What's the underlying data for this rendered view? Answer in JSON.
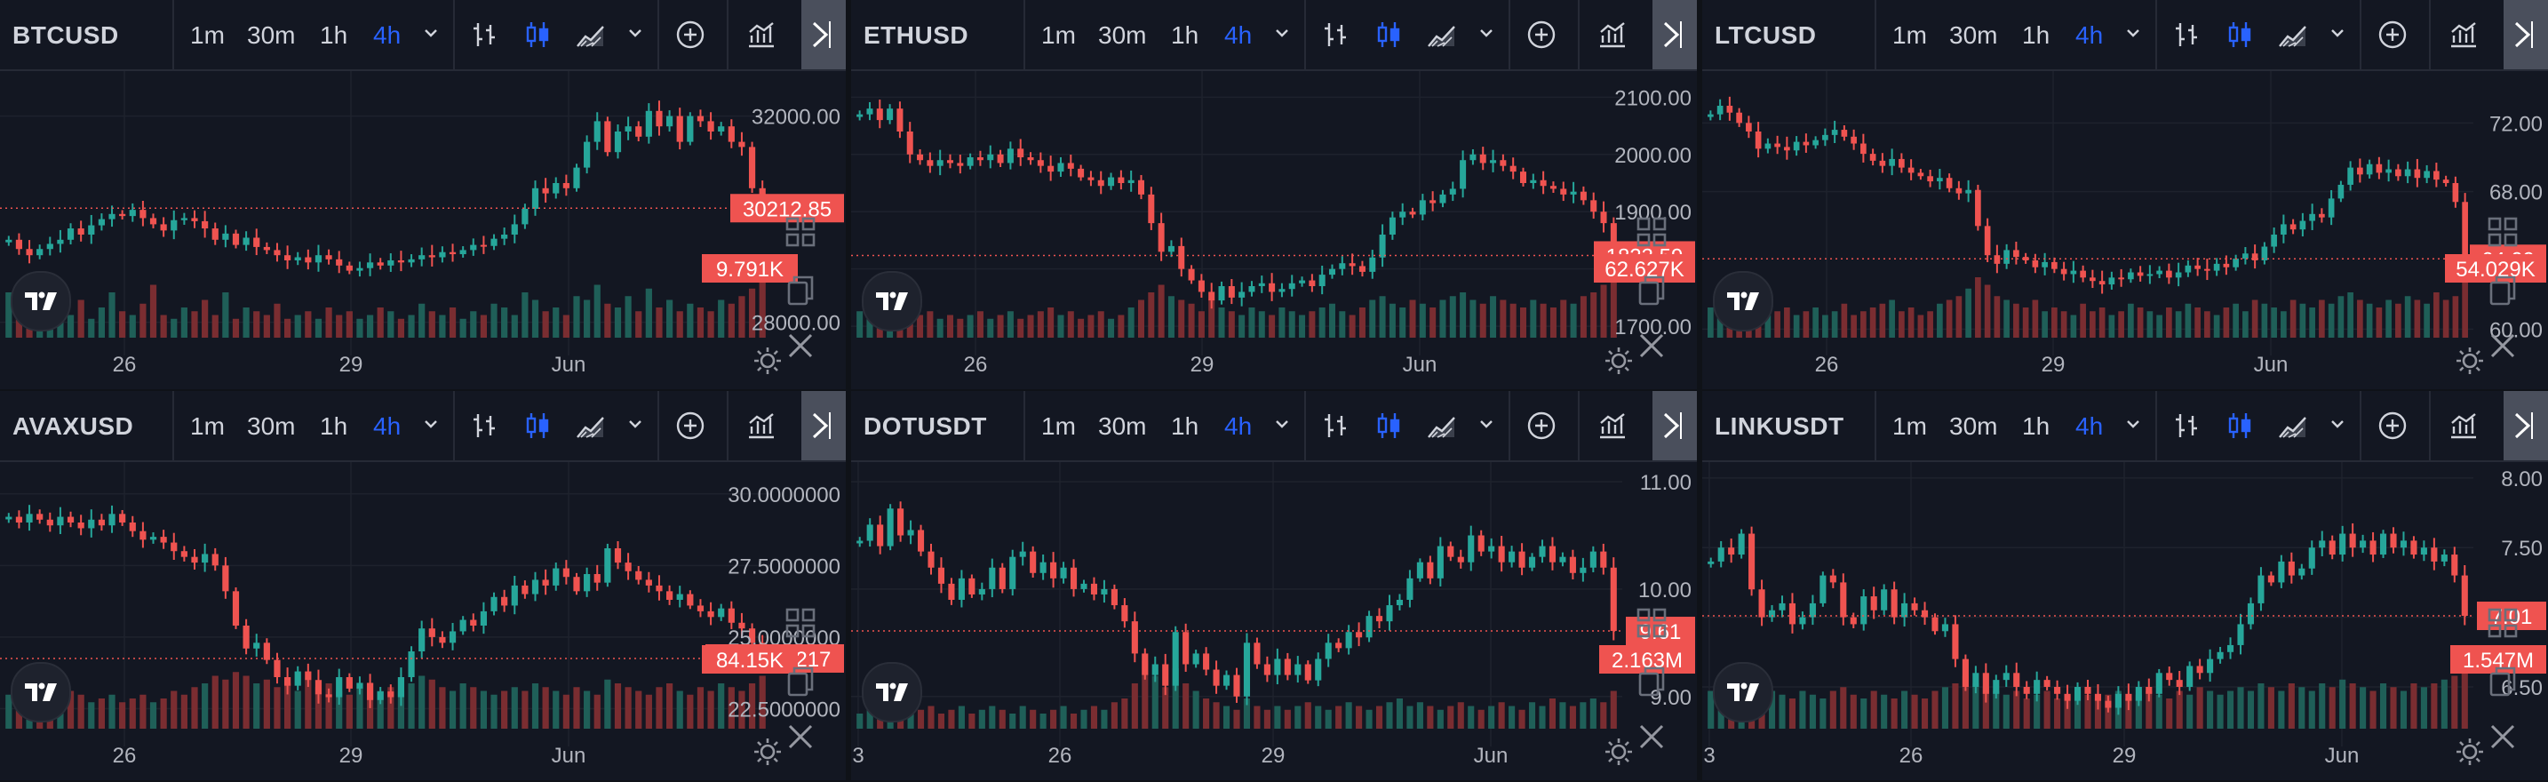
{
  "colors": {
    "background": "#131722",
    "up": "#26a69a",
    "down": "#ef5350",
    "up_volume": "#1f5f58",
    "down_volume": "#7a2d31",
    "label_bg": "#ef5350",
    "active_timeframe": "#2962ff",
    "text": "#d1d4dc",
    "axis_text": "#b2b5be"
  },
  "toolbar": {
    "timeframes": [
      "1m",
      "30m",
      "1h",
      "4h"
    ],
    "active_timeframe": "4h",
    "icons": [
      "bar-style-icon",
      "candle-style-icon",
      "area-style-icon",
      "chevron-down-icon",
      "add-indicator-icon",
      "indicators-icon",
      "fullscreen-icon"
    ]
  },
  "panels": [
    {
      "symbol": "BTCUSD",
      "price_label": "30212.85",
      "volume_label": "9.791K",
      "x_ticks": [
        "26",
        "29",
        "Jun"
      ],
      "chart_data": {
        "type": "candlestick",
        "y_ticks": [
          "32000.00",
          "28000.00"
        ],
        "y_tick_values": [
          32000,
          28000
        ],
        "ylim": [
          27700,
          32700
        ],
        "last_price": 30212.85,
        "closes": [
          29600,
          29420,
          29300,
          29420,
          29520,
          29600,
          29820,
          29700,
          29880,
          30000,
          30100,
          30060,
          30180,
          30020,
          29900,
          29780,
          29980,
          30020,
          29960,
          29820,
          29600,
          29720,
          29500,
          29640,
          29460,
          29400,
          29300,
          29200,
          29260,
          29160,
          29300,
          29220,
          29100,
          29000,
          29050,
          29160,
          29100,
          29200,
          29160,
          29220,
          29300,
          29260,
          29360,
          29320,
          29400,
          29500,
          29480,
          29620,
          29700,
          29900,
          30200,
          30600,
          30500,
          30700,
          30600,
          31000,
          31500,
          31900,
          31300,
          31700,
          31800,
          31600,
          32100,
          31800,
          32000,
          31500,
          32000,
          31900,
          31700,
          31800,
          31500,
          31400,
          30600,
          30200
        ],
        "volumes": [
          0.6,
          0.35,
          0.25,
          0.3,
          0.45,
          0.35,
          0.3,
          0.5,
          0.25,
          0.4,
          0.6,
          0.35,
          0.3,
          0.45,
          0.7,
          0.3,
          0.25,
          0.4,
          0.35,
          0.5,
          0.3,
          0.6,
          0.25,
          0.4,
          0.35,
          0.3,
          0.45,
          0.25,
          0.3,
          0.35,
          0.25,
          0.4,
          0.3,
          0.35,
          0.25,
          0.3,
          0.4,
          0.35,
          0.25,
          0.3,
          0.45,
          0.35,
          0.3,
          0.4,
          0.25,
          0.35,
          0.3,
          0.45,
          0.4,
          0.3,
          0.6,
          0.5,
          0.35,
          0.4,
          0.3,
          0.55,
          0.5,
          0.7,
          0.45,
          0.4,
          0.55,
          0.35,
          0.65,
          0.4,
          0.5,
          0.35,
          0.45,
          0.4,
          0.35,
          0.5,
          0.45,
          0.55,
          0.65,
          1.0
        ]
      }
    },
    {
      "symbol": "ETHUSD",
      "price_label": "1823.59",
      "volume_label": "62.627K",
      "x_ticks": [
        "26",
        "29",
        "Jun"
      ],
      "chart_data": {
        "type": "candlestick",
        "y_ticks": [
          "2100.00",
          "2000.00",
          "1900.00",
          "1800.00",
          "1700.00"
        ],
        "y_tick_values": [
          2100,
          2000,
          1900,
          1800,
          1700
        ],
        "ylim": [
          1680,
          2130
        ],
        "last_price": 1823.59,
        "closes": [
          2070,
          2080,
          2060,
          2080,
          2040,
          2000,
          1990,
          1980,
          1990,
          1985,
          1980,
          1995,
          1990,
          2000,
          1985,
          2010,
          1995,
          1990,
          1980,
          1970,
          1985,
          1975,
          1960,
          1955,
          1945,
          1960,
          1950,
          1955,
          1930,
          1880,
          1830,
          1840,
          1800,
          1780,
          1760,
          1745,
          1770,
          1750,
          1760,
          1770,
          1775,
          1760,
          1765,
          1775,
          1780,
          1770,
          1790,
          1800,
          1810,
          1805,
          1795,
          1820,
          1860,
          1890,
          1900,
          1895,
          1920,
          1915,
          1930,
          1940,
          1990,
          2000,
          1985,
          1990,
          1980,
          1970,
          1950,
          1955,
          1945,
          1940,
          1930,
          1935,
          1920,
          1900,
          1880,
          1823.59
        ],
        "volumes": [
          0.35,
          0.3,
          0.25,
          0.3,
          0.35,
          0.25,
          0.3,
          0.35,
          0.25,
          0.3,
          0.25,
          0.3,
          0.35,
          0.25,
          0.3,
          0.35,
          0.25,
          0.3,
          0.35,
          0.4,
          0.3,
          0.35,
          0.25,
          0.3,
          0.35,
          0.25,
          0.3,
          0.4,
          0.5,
          0.6,
          0.7,
          0.55,
          0.5,
          0.45,
          0.35,
          0.5,
          0.4,
          0.35,
          0.3,
          0.4,
          0.35,
          0.3,
          0.4,
          0.35,
          0.3,
          0.35,
          0.4,
          0.45,
          0.35,
          0.3,
          0.4,
          0.5,
          0.55,
          0.45,
          0.4,
          0.5,
          0.45,
          0.4,
          0.5,
          0.55,
          0.6,
          0.5,
          0.45,
          0.55,
          0.5,
          0.45,
          0.4,
          0.5,
          0.45,
          0.4,
          0.5,
          0.45,
          0.55,
          0.6,
          0.7,
          1.0
        ]
      }
    },
    {
      "symbol": "LTCUSD",
      "price_label": "64.09",
      "volume_label": "54.029K",
      "x_ticks": [
        "26",
        "29",
        "Jun"
      ],
      "chart_data": {
        "type": "candlestick",
        "y_ticks": [
          "72.00",
          "68.00",
          "60.00"
        ],
        "y_tick_values": [
          72,
          68,
          60
        ],
        "ylim": [
          59.5,
          74.5
        ],
        "last_price": 64.09,
        "closes": [
          72.5,
          73,
          72.6,
          72,
          71.5,
          70.5,
          70.8,
          70.6,
          70.4,
          70.9,
          70.7,
          71.0,
          71.3,
          71.6,
          71.2,
          70.8,
          70.2,
          69.8,
          69.5,
          69.9,
          69.4,
          69.1,
          68.9,
          68.6,
          68.8,
          68.2,
          67.9,
          68.1,
          66.0,
          64.3,
          63.8,
          64.6,
          64.2,
          64.0,
          63.6,
          63.9,
          63.5,
          63.2,
          63.4,
          63.0,
          62.8,
          62.6,
          63.0,
          62.9,
          63.3,
          63.1,
          63.2,
          63.4,
          63.0,
          63.3,
          63.7,
          63.5,
          63.4,
          63.8,
          63.6,
          64.1,
          64.4,
          64.0,
          64.8,
          65.5,
          66.1,
          65.8,
          66.3,
          66.7,
          66.5,
          67.6,
          68.4,
          69.4,
          69.0,
          69.6,
          69.1,
          69.3,
          68.9,
          69.3,
          68.8,
          69.2,
          68.7,
          68.5,
          67.4,
          64.09
        ],
        "volumes": [
          0.4,
          0.35,
          0.5,
          0.4,
          0.35,
          0.45,
          0.3,
          0.35,
          0.4,
          0.3,
          0.35,
          0.4,
          0.3,
          0.35,
          0.45,
          0.3,
          0.35,
          0.4,
          0.45,
          0.5,
          0.35,
          0.4,
          0.3,
          0.35,
          0.45,
          0.5,
          0.55,
          0.65,
          0.8,
          0.7,
          0.55,
          0.5,
          0.45,
          0.4,
          0.5,
          0.35,
          0.4,
          0.35,
          0.3,
          0.45,
          0.35,
          0.4,
          0.3,
          0.35,
          0.45,
          0.4,
          0.35,
          0.3,
          0.4,
          0.35,
          0.45,
          0.4,
          0.35,
          0.3,
          0.4,
          0.45,
          0.35,
          0.5,
          0.45,
          0.4,
          0.35,
          0.5,
          0.45,
          0.4,
          0.5,
          0.45,
          0.55,
          0.6,
          0.5,
          0.45,
          0.4,
          0.5,
          0.45,
          0.55,
          0.5,
          0.45,
          0.6,
          0.5,
          0.55,
          0.8
        ]
      }
    },
    {
      "symbol": "AVAXUSD",
      "price_label": "24.2526217",
      "volume_label": "84.15K",
      "x_ticks": [
        "26",
        "29",
        "Jun"
      ],
      "chart_data": {
        "type": "candlestick",
        "y_ticks": [
          "30.0000000",
          "27.5000000",
          "25.0000000",
          "22.5000000"
        ],
        "y_tick_values": [
          30,
          27.5,
          25,
          22.5
        ],
        "ylim": [
          21.8,
          30.8
        ],
        "last_price": 24.2526217,
        "closes": [
          29.2,
          29.0,
          29.3,
          29.1,
          28.9,
          29.2,
          29.0,
          28.8,
          29.1,
          28.9,
          29.3,
          29.0,
          28.7,
          28.4,
          28.5,
          28.3,
          28.0,
          27.8,
          27.6,
          27.9,
          27.5,
          26.6,
          25.4,
          24.6,
          24.8,
          24.2,
          23.6,
          23.3,
          23.8,
          23.5,
          23.0,
          22.9,
          23.6,
          23.2,
          23.4,
          22.8,
          23.1,
          22.9,
          23.6,
          24.5,
          25.3,
          25.0,
          24.8,
          25.2,
          25.6,
          25.4,
          25.9,
          26.4,
          26.1,
          26.8,
          26.5,
          27.0,
          26.8,
          27.4,
          27.1,
          26.6,
          27.2,
          26.9,
          28.1,
          27.6,
          27.3,
          27.0,
          26.8,
          26.6,
          26.3,
          26.5,
          26.1,
          25.9,
          25.7,
          26.0,
          25.5,
          25.3,
          24.8,
          24.25
        ],
        "volumes": [
          0.45,
          0.5,
          0.4,
          0.35,
          0.45,
          0.4,
          0.5,
          0.45,
          0.35,
          0.4,
          0.45,
          0.35,
          0.4,
          0.45,
          0.35,
          0.4,
          0.5,
          0.45,
          0.55,
          0.6,
          0.7,
          0.65,
          0.75,
          0.7,
          0.6,
          0.65,
          0.55,
          0.6,
          0.5,
          0.65,
          0.55,
          0.6,
          0.5,
          0.45,
          0.55,
          0.6,
          0.5,
          0.55,
          0.5,
          0.6,
          0.7,
          0.65,
          0.55,
          0.5,
          0.6,
          0.55,
          0.5,
          0.45,
          0.5,
          0.55,
          0.5,
          0.6,
          0.55,
          0.5,
          0.45,
          0.55,
          0.5,
          0.45,
          0.65,
          0.6,
          0.55,
          0.5,
          0.45,
          0.55,
          0.6,
          0.5,
          0.45,
          0.55,
          0.5,
          0.6,
          0.55,
          0.5,
          0.6,
          0.7
        ]
      }
    },
    {
      "symbol": "DOTUSDT",
      "price_label": "9.61",
      "volume_label": "2.163M",
      "x_ticks": [
        "3",
        "26",
        "29",
        "Jun"
      ],
      "chart_data": {
        "type": "candlestick",
        "y_ticks": [
          "11.00",
          "10.00",
          "9.00"
        ],
        "y_tick_values": [
          11,
          10,
          9
        ],
        "ylim": [
          8.7,
          11.1
        ],
        "last_price": 9.61,
        "closes": [
          10.45,
          10.6,
          10.4,
          10.75,
          10.5,
          10.55,
          10.35,
          10.2,
          10.05,
          9.9,
          10.1,
          9.95,
          10.0,
          10.2,
          10.0,
          10.3,
          10.35,
          10.15,
          10.25,
          10.1,
          10.2,
          10.0,
          10.05,
          9.95,
          10.0,
          9.85,
          9.7,
          9.4,
          9.2,
          9.3,
          9.1,
          9.6,
          9.3,
          9.4,
          9.25,
          9.1,
          9.2,
          9.0,
          9.5,
          9.3,
          9.2,
          9.35,
          9.2,
          9.3,
          9.15,
          9.35,
          9.5,
          9.45,
          9.6,
          9.55,
          9.75,
          9.7,
          9.85,
          9.9,
          10.1,
          10.25,
          10.1,
          10.4,
          10.3,
          10.25,
          10.5,
          10.35,
          10.4,
          10.25,
          10.35,
          10.2,
          10.3,
          10.4,
          10.25,
          10.3,
          10.15,
          10.2,
          10.35,
          10.2,
          9.61
        ],
        "volumes": [
          0.2,
          0.25,
          0.2,
          0.3,
          0.25,
          0.2,
          0.25,
          0.3,
          0.2,
          0.25,
          0.3,
          0.2,
          0.25,
          0.3,
          0.25,
          0.2,
          0.3,
          0.25,
          0.2,
          0.25,
          0.3,
          0.2,
          0.25,
          0.3,
          0.25,
          0.35,
          0.4,
          0.6,
          0.9,
          0.7,
          0.55,
          0.8,
          0.6,
          0.5,
          0.4,
          0.35,
          0.3,
          0.25,
          0.4,
          0.3,
          0.25,
          0.3,
          0.25,
          0.3,
          0.35,
          0.3,
          0.25,
          0.3,
          0.35,
          0.3,
          0.25,
          0.3,
          0.35,
          0.4,
          0.3,
          0.35,
          0.3,
          0.25,
          0.3,
          0.35,
          0.3,
          0.25,
          0.3,
          0.35,
          0.3,
          0.25,
          0.35,
          0.3,
          0.4,
          0.35,
          0.3,
          0.35,
          0.4,
          0.35,
          0.5
        ]
      }
    },
    {
      "symbol": "LINKUSDT",
      "price_label": "7.01",
      "volume_label": "1.547M",
      "x_ticks": [
        "3",
        "26",
        "29",
        "Jun"
      ],
      "chart_data": {
        "type": "candlestick",
        "y_ticks": [
          "8.00",
          "7.50",
          "7.00",
          "6.50"
        ],
        "y_tick_values": [
          8,
          7.5,
          7,
          6.5
        ],
        "ylim": [
          6.2,
          8.05
        ],
        "last_price": 7.01,
        "closes": [
          7.4,
          7.5,
          7.45,
          7.6,
          7.2,
          7.0,
          7.05,
          7.1,
          6.95,
          7.0,
          7.1,
          7.3,
          7.25,
          7.0,
          6.95,
          7.15,
          7.05,
          7.2,
          7.0,
          7.1,
          7.05,
          7.0,
          6.9,
          6.95,
          6.7,
          6.5,
          6.6,
          6.45,
          6.55,
          6.6,
          6.5,
          6.45,
          6.55,
          6.5,
          6.45,
          6.4,
          6.5,
          6.45,
          6.4,
          6.35,
          6.45,
          6.4,
          6.5,
          6.45,
          6.6,
          6.55,
          6.5,
          6.65,
          6.6,
          6.7,
          6.75,
          6.8,
          6.95,
          7.1,
          7.3,
          7.25,
          7.4,
          7.3,
          7.35,
          7.5,
          7.55,
          7.45,
          7.6,
          7.5,
          7.55,
          7.45,
          7.6,
          7.5,
          7.55,
          7.45,
          7.5,
          7.4,
          7.45,
          7.3,
          7.01
        ],
        "volumes": [
          0.5,
          0.45,
          0.4,
          0.5,
          0.45,
          0.55,
          0.5,
          0.45,
          0.4,
          0.5,
          0.45,
          0.4,
          0.5,
          0.55,
          0.45,
          0.4,
          0.5,
          0.45,
          0.4,
          0.5,
          0.45,
          0.4,
          0.5,
          0.55,
          0.6,
          0.7,
          0.6,
          0.55,
          0.5,
          0.45,
          0.5,
          0.4,
          0.45,
          0.5,
          0.4,
          0.45,
          0.5,
          0.45,
          0.4,
          0.45,
          0.5,
          0.4,
          0.45,
          0.5,
          0.45,
          0.4,
          0.5,
          0.45,
          0.55,
          0.5,
          0.45,
          0.5,
          0.55,
          0.5,
          0.6,
          0.55,
          0.5,
          0.6,
          0.55,
          0.5,
          0.6,
          0.55,
          0.65,
          0.6,
          0.55,
          0.5,
          0.6,
          0.55,
          0.5,
          0.6,
          0.55,
          0.6,
          0.65,
          0.7,
          0.8
        ]
      }
    }
  ]
}
